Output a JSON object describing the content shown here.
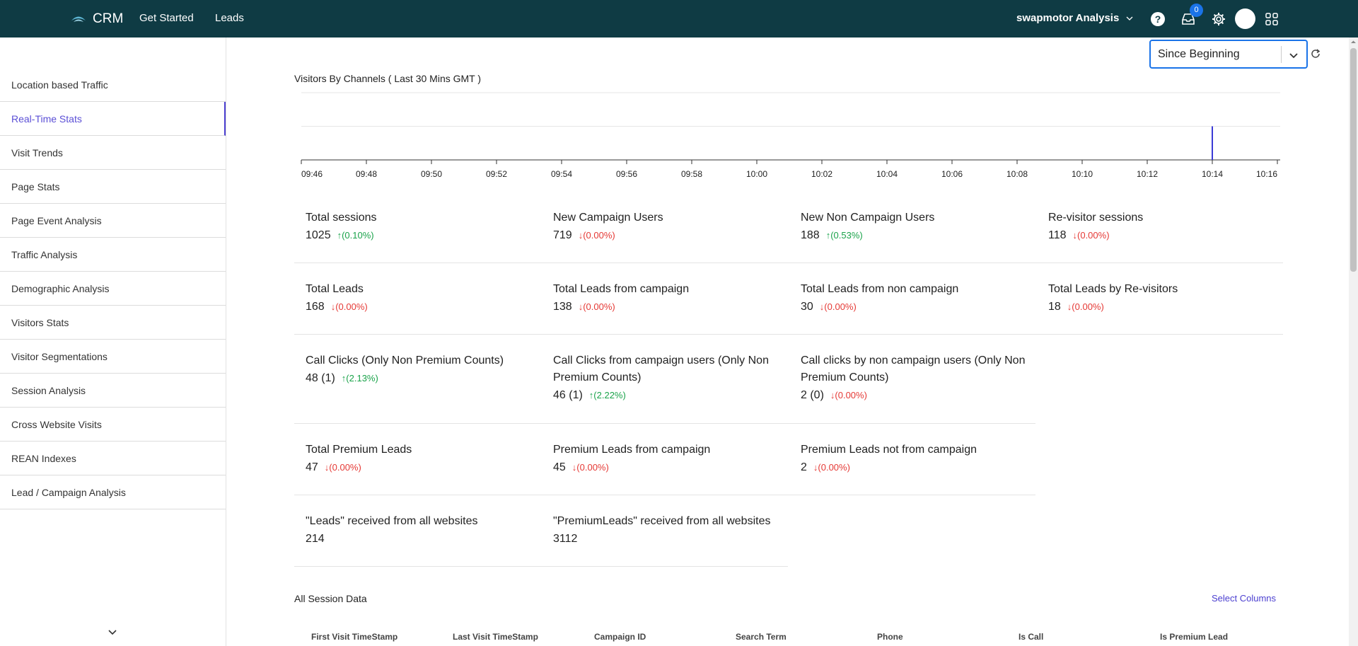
{
  "topbar": {
    "brand": "CRM",
    "nav": [
      "Get Started",
      "Leads"
    ],
    "account": "swapmotor Analysis",
    "badge_count": "0",
    "colors": {
      "background": "#0f3b44",
      "badge": "#1a73e8"
    }
  },
  "sidebar": {
    "items": [
      "Location based Traffic",
      "Real-Time Stats",
      "Visit Trends",
      "Page Stats",
      "Page Event Analysis",
      "Traffic Analysis",
      "Demographic Analysis",
      "Visitors Stats",
      "Visitor Segmentations",
      "Session Analysis",
      "Cross Website Visits",
      "REAN Indexes",
      "Lead / Campaign Analysis"
    ],
    "active": "Real-Time Stats",
    "active_color": "#5b4fd6"
  },
  "range_select": {
    "value": "Since Beginning"
  },
  "chart": {
    "title": "Visitors By Channels ( Last 30 Mins GMT )"
  },
  "chart_data": {
    "type": "bar",
    "title": "Visitors By Channels ( Last 30 Mins GMT )",
    "x_ticks": [
      "09:46",
      "09:48",
      "09:50",
      "09:52",
      "09:54",
      "09:56",
      "09:58",
      "10:00",
      "10:02",
      "10:04",
      "10:06",
      "10:08",
      "10:10",
      "10:12",
      "10:14",
      "10:16"
    ],
    "x_range": [
      "09:46",
      "10:16"
    ],
    "points": [
      {
        "x": "10:14",
        "y": 1
      }
    ],
    "ylim": [
      0,
      2
    ],
    "grid": true,
    "color": "#3b3bd6"
  },
  "metrics_rows": [
    [
      {
        "label": "Total sessions",
        "value": "1025",
        "delta": "↑(0.10%)",
        "dir": "up"
      },
      {
        "label": "New Campaign Users",
        "value": "719",
        "delta": "↓(0.00%)",
        "dir": "down"
      },
      {
        "label": "New Non Campaign Users",
        "value": "188",
        "delta": "↑(0.53%)",
        "dir": "up"
      },
      {
        "label": "Re-visitor sessions",
        "value": "118",
        "delta": "↓(0.00%)",
        "dir": "down"
      }
    ],
    [
      {
        "label": "Total Leads",
        "value": "168",
        "delta": "↓(0.00%)",
        "dir": "down"
      },
      {
        "label": "Total Leads from campaign",
        "value": "138",
        "delta": "↓(0.00%)",
        "dir": "down"
      },
      {
        "label": "Total Leads from non campaign",
        "value": "30",
        "delta": "↓(0.00%)",
        "dir": "down"
      },
      {
        "label": "Total Leads by Re-visitors",
        "value": "18",
        "delta": "↓(0.00%)",
        "dir": "down"
      }
    ],
    [
      {
        "label": "Call Clicks (Only Non Premium Counts)",
        "value": "48 (1)",
        "delta": "↑(2.13%)",
        "dir": "up"
      },
      {
        "label": "Call Clicks from campaign users (Only Non Premium Counts)",
        "value": "46 (1)",
        "delta": "↑(2.22%)",
        "dir": "up"
      },
      {
        "label": "Call clicks by non campaign users (Only Non Premium Counts)",
        "value": "2 (0)",
        "delta": "↓(0.00%)",
        "dir": "down"
      }
    ],
    [
      {
        "label": "Total Premium Leads",
        "value": "47",
        "delta": "↓(0.00%)",
        "dir": "down"
      },
      {
        "label": "Premium Leads from campaign",
        "value": "45",
        "delta": "↓(0.00%)",
        "dir": "down"
      },
      {
        "label": "Premium Leads not from campaign",
        "value": "2",
        "delta": "↓(0.00%)",
        "dir": "down"
      }
    ],
    [
      {
        "label": "\"Leads\" received from all websites",
        "value": "214",
        "delta": "",
        "dir": ""
      },
      {
        "label": "\"PremiumLeads\" received from all websites",
        "value": "3112",
        "delta": "",
        "dir": ""
      }
    ]
  ],
  "session_table": {
    "title": "All Session Data",
    "select_columns": "Select Columns",
    "headers": [
      "First Visit TimeStamp",
      "Last Visit TimeStamp",
      "Campaign ID",
      "Search Term",
      "Phone",
      "Is Call",
      "Is Premium Lead"
    ]
  }
}
